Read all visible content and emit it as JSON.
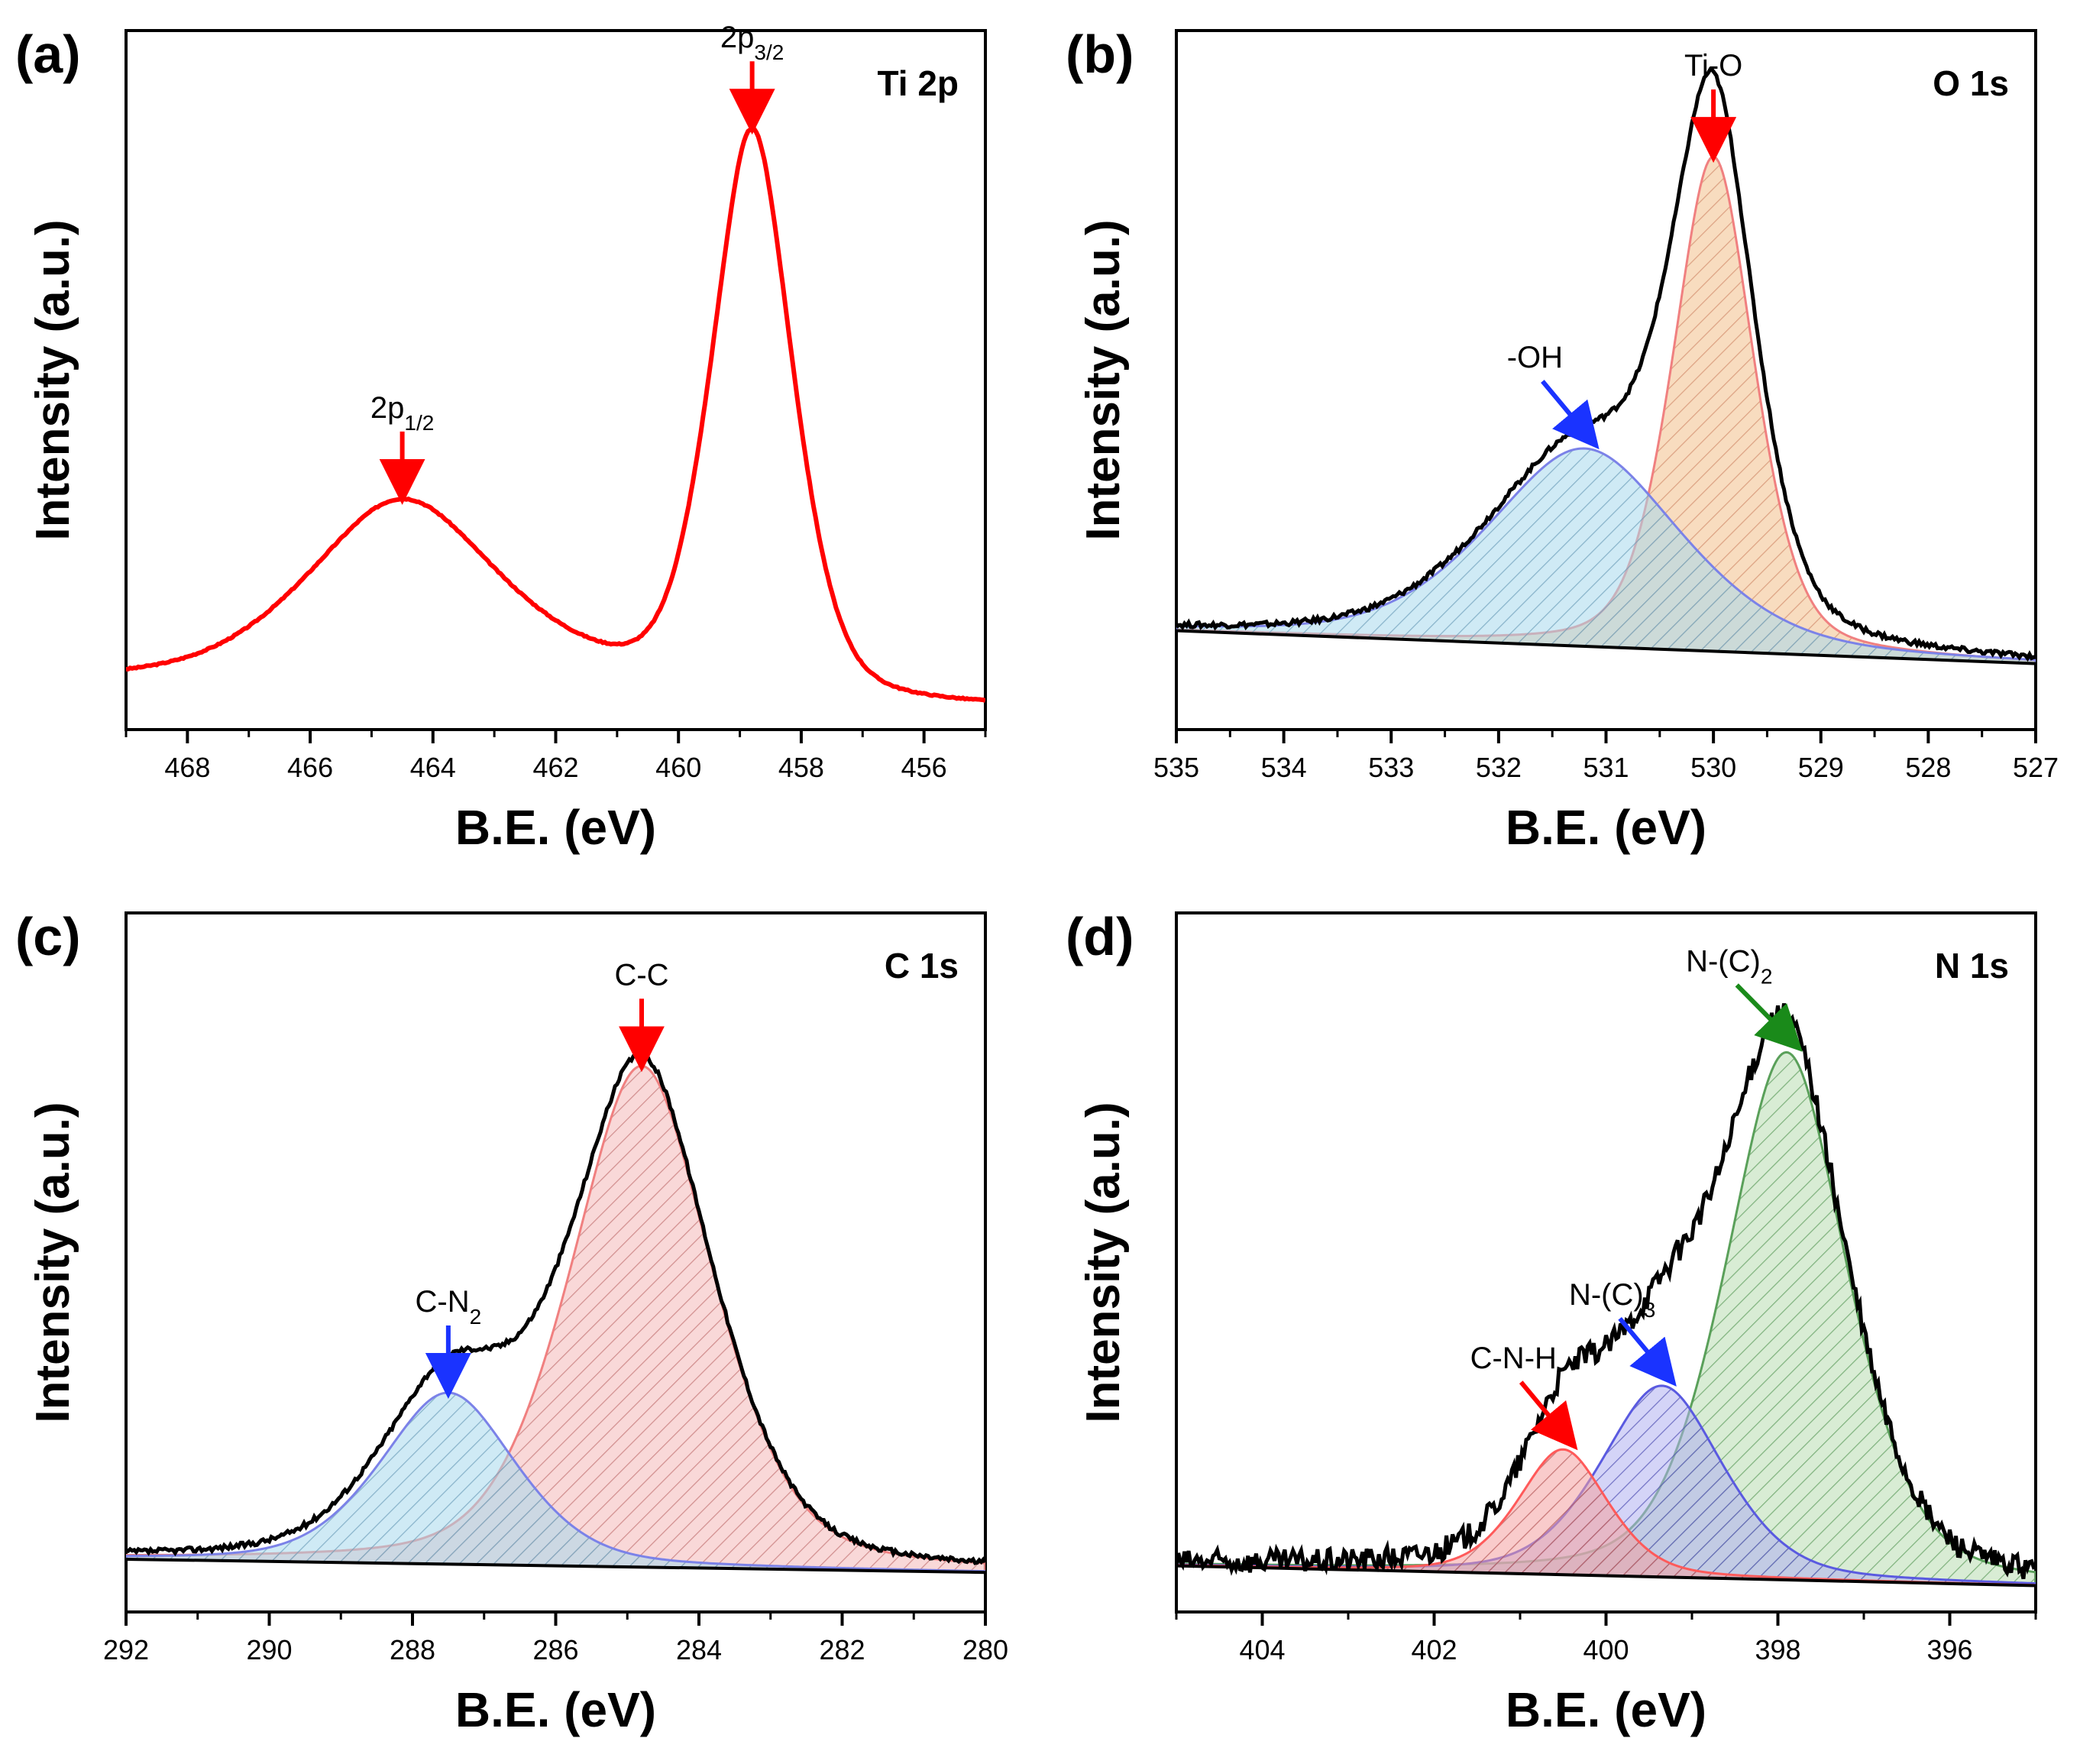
{
  "chart_data": [
    {
      "type": "line",
      "panel": "(a)",
      "tag": "Ti 2p",
      "xlabel": "B.E. (eV)",
      "ylabel": "Intensity (a.u.)",
      "xlim": [
        469,
        455
      ],
      "ylim": [
        0,
        1.06
      ],
      "xticks": [
        468,
        466,
        464,
        462,
        460,
        458,
        456
      ],
      "x_reversed": true,
      "series": [
        {
          "name": "Ti 2p",
          "color": "#ff0000",
          "peaks": [
            {
              "center": 464.5,
              "height": 0.27,
              "width": 1.6
            },
            {
              "center": 458.8,
              "height": 0.87,
              "width": 0.7
            }
          ],
          "baseline_high": 0.075,
          "baseline_low": 0.03,
          "baseline_step_center": 460.5,
          "noise": 0.002
        }
      ],
      "annotations": [
        {
          "text": "2p",
          "sub": "1/2",
          "x": 464.5,
          "arrow_color": "#ff0000"
        },
        {
          "text": "2p",
          "sub": "3/2",
          "x": 458.8,
          "arrow_color": "#ff0000"
        }
      ]
    },
    {
      "type": "area",
      "panel": "(b)",
      "tag": "O 1s",
      "xlabel": "B.E. (eV)",
      "ylabel": "Intensity (a.u.)",
      "xlim": [
        535,
        527
      ],
      "ylim": [
        0,
        1.06
      ],
      "xticks": [
        535,
        534,
        533,
        532,
        531,
        530,
        529,
        528,
        527
      ],
      "x_reversed": true,
      "series": [
        {
          "name": "Measured",
          "color": "#000000"
        },
        {
          "name": "Ti-O",
          "color": "#f08080",
          "fill": "#f2c08a",
          "center": 530.0,
          "height": 0.75,
          "width": 0.4
        },
        {
          "name": "-OH",
          "color": "#7b82e8",
          "fill": "#a8d8ec",
          "center": 531.2,
          "height": 0.3,
          "width": 0.95
        }
      ],
      "baseline": {
        "left": 0.15,
        "right": 0.1
      },
      "annotations": [
        {
          "text": "Ti-O",
          "x": 530.0,
          "arrow_color": "#ff0000"
        },
        {
          "text": "-OH",
          "x": 531.2,
          "arrow_color": "#1a33ff"
        }
      ]
    },
    {
      "type": "area",
      "panel": "(c)",
      "tag": "C 1s",
      "xlabel": "B.E. (eV)",
      "ylabel": "Intensity (a.u.)",
      "xlim": [
        292,
        280
      ],
      "ylim": [
        0,
        1.06
      ],
      "xticks": [
        292,
        290,
        288,
        286,
        284,
        282,
        280
      ],
      "x_reversed": true,
      "series": [
        {
          "name": "Measured",
          "color": "#000000"
        },
        {
          "name": "C-C",
          "color": "#f08080",
          "fill": "#f4b8b8",
          "center": 284.8,
          "height": 0.76,
          "width": 1.05
        },
        {
          "name": "C-N2",
          "color": "#7b82e8",
          "fill": "#a8d8ec",
          "center": 287.5,
          "height": 0.26,
          "width": 1.0
        }
      ],
      "baseline": {
        "left": 0.08,
        "right": 0.06
      },
      "annotations": [
        {
          "text": "C-C",
          "x": 284.8,
          "arrow_color": "#ff0000"
        },
        {
          "text": "C-N",
          "sub": "2",
          "x": 287.5,
          "arrow_color": "#1a33ff"
        }
      ]
    },
    {
      "type": "area",
      "panel": "(d)",
      "tag": "N 1s",
      "xlabel": "B.E. (eV)",
      "ylabel": "Intensity (a.u.)",
      "xlim": [
        405,
        395
      ],
      "ylim": [
        0,
        1.06
      ],
      "xticks": [
        404,
        402,
        400,
        398,
        396
      ],
      "x_reversed": true,
      "series": [
        {
          "name": "Measured",
          "color": "#000000"
        },
        {
          "name": "N-(C)2",
          "color": "#5aa05a",
          "fill": "#b8dcb0",
          "center": 397.9,
          "height": 0.8,
          "width": 0.75
        },
        {
          "name": "N-(C)3",
          "color": "#5a5ae0",
          "fill": "#b0b0f0",
          "center": 399.35,
          "height": 0.29,
          "width": 0.75
        },
        {
          "name": "C-N-H",
          "color": "#ff5a5a",
          "fill": "#f4a0a0",
          "center": 400.5,
          "height": 0.19,
          "width": 0.55
        }
      ],
      "baseline": {
        "left": 0.07,
        "right": 0.04
      },
      "annotations": [
        {
          "text": "N-(C)",
          "sub": "2",
          "x": 397.9,
          "arrow_color": "#1a8a1a"
        },
        {
          "text": "N-(C)",
          "sub": "3",
          "x": 399.35,
          "arrow_color": "#1a33ff"
        },
        {
          "text": "C-N-H",
          "x": 400.5,
          "arrow_color": "#ff0000"
        }
      ]
    }
  ]
}
